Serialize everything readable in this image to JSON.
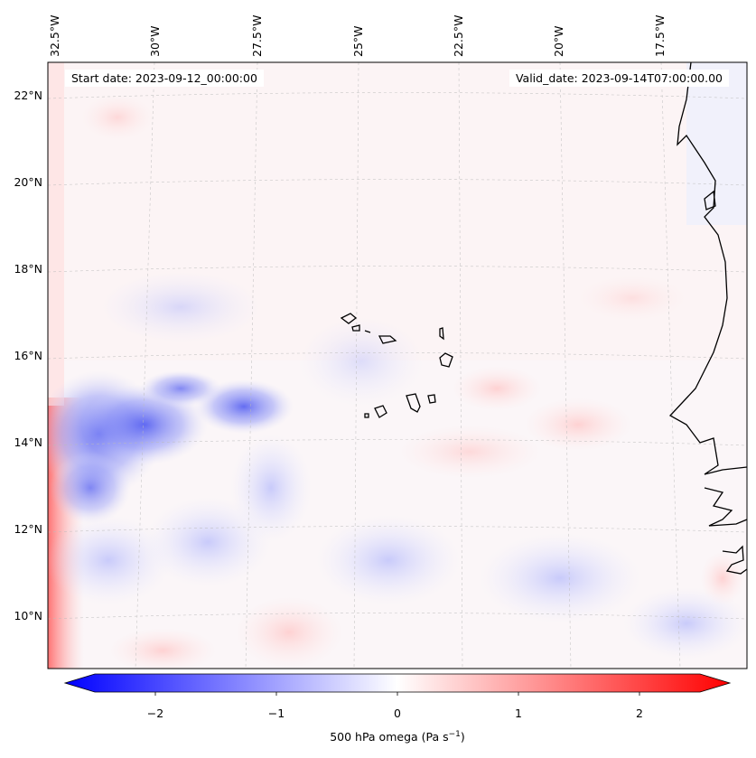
{
  "annotations": {
    "start_date": "Start date: 2023-09-12_00:00:00",
    "valid_date": "Valid_date: 2023-09-14T07:00:00.00"
  },
  "lat_labels": [
    "22°N",
    "20°N",
    "18°N",
    "16°N",
    "14°N",
    "12°N",
    "10°N"
  ],
  "lon_labels": [
    "32.5°W",
    "30°W",
    "27.5°W",
    "25°W",
    "22.5°W",
    "20°W",
    "17.5°W"
  ],
  "colorbar": {
    "label_main": "500 hPa omega (Pa s",
    "label_sup": "−1",
    "label_end": ")",
    "ticks": [
      "−2",
      "−1",
      "0",
      "1",
      "2"
    ],
    "range": [
      -2.5,
      2.5
    ],
    "colormap": "bwr",
    "min_color": "#0000ff",
    "mid_color": "#ffffff",
    "max_color": "#ff0000"
  },
  "colors": {
    "coastline": "#000000",
    "gridline": "#bbbbbb"
  }
}
